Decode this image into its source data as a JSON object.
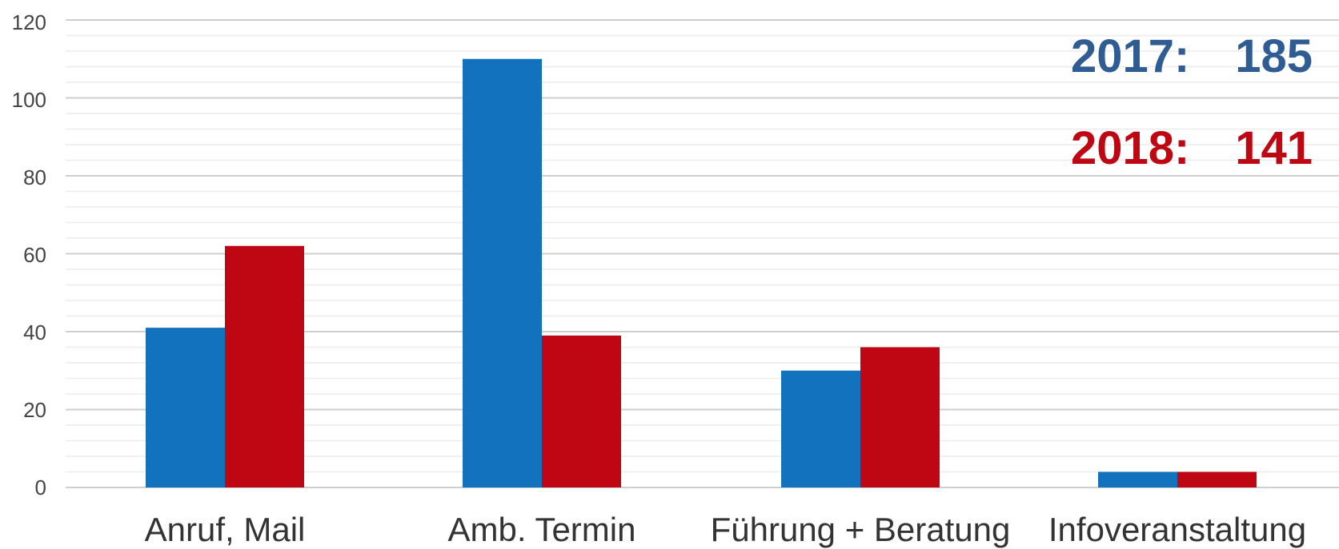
{
  "chart_data": {
    "type": "bar",
    "categories": [
      "Anruf, Mail",
      "Amb. Termin",
      "Führung + Beratung",
      "Infoveranstaltung"
    ],
    "series": [
      {
        "values": [
          41,
          110,
          30,
          4
        ],
        "color": "#1372BE"
      },
      {
        "values": [
          62,
          39,
          36,
          4
        ],
        "color": "#BE0712"
      }
    ],
    "ylim": [
      0,
      120
    ],
    "yticks": [
      "0",
      "20",
      "40",
      "60",
      "80",
      "100",
      "120"
    ],
    "ytick_values": [
      0,
      20,
      40,
      60,
      80,
      100,
      120
    ],
    "minor_gridlines": true,
    "legend": "none"
  },
  "annotations": [
    {
      "year": "2017:",
      "total": "185",
      "color": "#2E5C93"
    },
    {
      "year": "2018:",
      "total": "141",
      "color": "#BE0712"
    }
  ]
}
